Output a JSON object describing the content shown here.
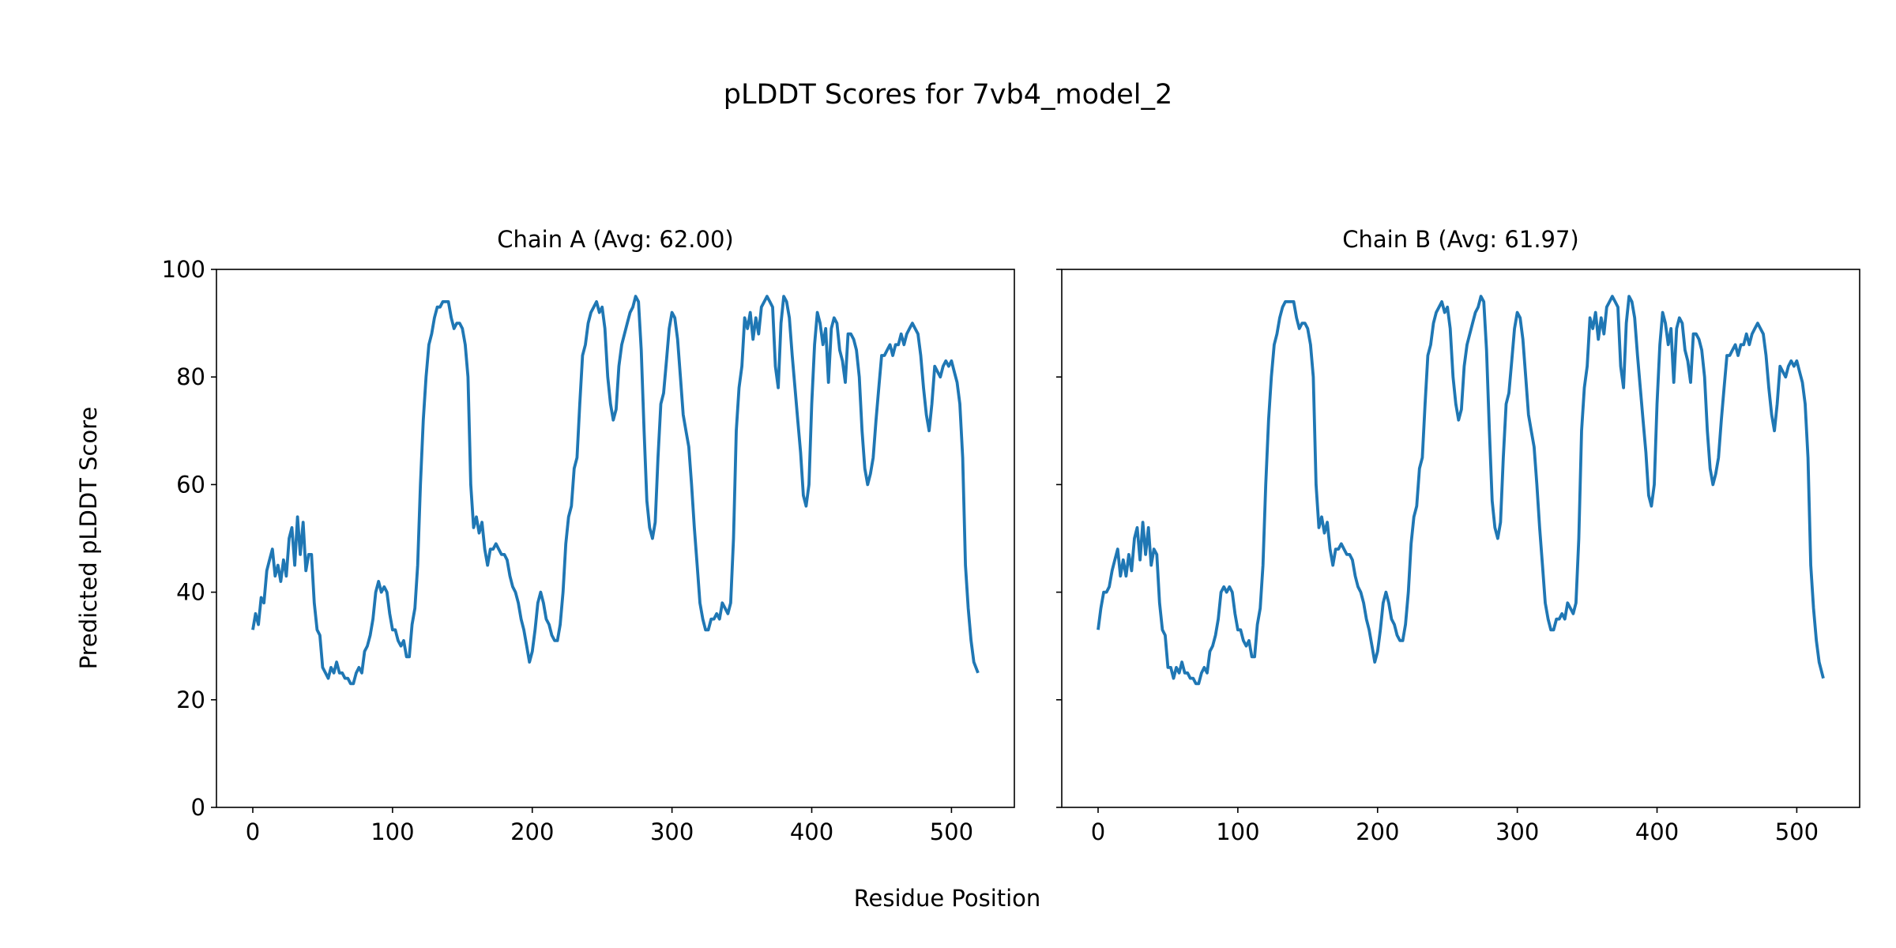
{
  "chart_data": {
    "type": "line",
    "title": "pLDDT Scores for 7vb4_model_2",
    "xlabel": "Residue Position",
    "ylabel": "Predicted pLDDT Score",
    "ylim": [
      0,
      100
    ],
    "xlim": [
      -26,
      545
    ],
    "xticks": [
      0,
      100,
      200,
      300,
      400,
      500
    ],
    "yticks": [
      0,
      20,
      40,
      60,
      80,
      100
    ],
    "grid": false,
    "line_color": "#1f77b4",
    "panels": [
      {
        "title": "Chain A (Avg: 62.00)",
        "x": [
          0,
          2,
          4,
          6,
          8,
          10,
          12,
          14,
          16,
          18,
          20,
          22,
          24,
          26,
          28,
          30,
          32,
          34,
          36,
          38,
          40,
          42,
          44,
          46,
          48,
          50,
          52,
          54,
          56,
          58,
          60,
          62,
          64,
          66,
          68,
          70,
          72,
          74,
          76,
          78,
          80,
          82,
          84,
          86,
          88,
          90,
          92,
          94,
          96,
          98,
          100,
          102,
          104,
          106,
          108,
          110,
          112,
          114,
          116,
          118,
          120,
          122,
          124,
          126,
          128,
          130,
          132,
          134,
          136,
          138,
          140,
          142,
          144,
          146,
          148,
          150,
          152,
          154,
          156,
          158,
          160,
          162,
          164,
          166,
          168,
          170,
          172,
          174,
          176,
          178,
          180,
          182,
          184,
          186,
          188,
          190,
          192,
          194,
          196,
          198,
          200,
          202,
          204,
          206,
          208,
          210,
          212,
          214,
          216,
          218,
          220,
          222,
          224,
          226,
          228,
          230,
          232,
          234,
          236,
          238,
          240,
          242,
          244,
          246,
          248,
          250,
          252,
          254,
          256,
          258,
          260,
          262,
          264,
          266,
          268,
          270,
          272,
          274,
          276,
          278,
          280,
          282,
          284,
          286,
          288,
          290,
          292,
          294,
          296,
          298,
          300,
          302,
          304,
          306,
          308,
          310,
          312,
          314,
          316,
          318,
          320,
          322,
          324,
          326,
          328,
          330,
          332,
          334,
          336,
          338,
          340,
          342,
          344,
          346,
          348,
          350,
          352,
          354,
          356,
          358,
          360,
          362,
          364,
          366,
          368,
          370,
          372,
          374,
          376,
          378,
          380,
          382,
          384,
          386,
          388,
          390,
          392,
          394,
          396,
          398,
          400,
          402,
          404,
          406,
          408,
          410,
          412,
          414,
          416,
          418,
          420,
          422,
          424,
          426,
          428,
          430,
          432,
          434,
          436,
          438,
          440,
          442,
          444,
          446,
          448,
          450,
          452,
          454,
          456,
          458,
          460,
          462,
          464,
          466,
          468,
          470,
          472,
          474,
          476,
          478,
          480,
          482,
          484,
          486,
          488,
          490,
          492,
          494,
          496,
          498,
          500,
          502,
          504,
          506,
          508,
          510,
          512,
          514,
          516,
          519
        ],
        "y": [
          33,
          36,
          34,
          39,
          38,
          44,
          46,
          48,
          43,
          45,
          42,
          46,
          43,
          50,
          52,
          45,
          54,
          47,
          53,
          44,
          47,
          47,
          38,
          33,
          32,
          26,
          25,
          24,
          26,
          25,
          27,
          25,
          25,
          24,
          24,
          23,
          23,
          25,
          26,
          25,
          29,
          30,
          32,
          35,
          40,
          42,
          40,
          41,
          40,
          36,
          33,
          33,
          31,
          30,
          31,
          28,
          28,
          34,
          37,
          45,
          60,
          72,
          80,
          86,
          88,
          91,
          93,
          93,
          94,
          94,
          94,
          91,
          89,
          90,
          90,
          89,
          86,
          80,
          60,
          52,
          54,
          51,
          53,
          48,
          45,
          48,
          48,
          49,
          48,
          47,
          47,
          46,
          43,
          41,
          40,
          38,
          35,
          33,
          30,
          27,
          29,
          33,
          38,
          40,
          38,
          35,
          34,
          32,
          31,
          31,
          34,
          40,
          49,
          54,
          56,
          63,
          65,
          75,
          84,
          86,
          90,
          92,
          93,
          94,
          92,
          93,
          89,
          80,
          75,
          72,
          74,
          82,
          86,
          88,
          90,
          92,
          93,
          95,
          94,
          85,
          70,
          57,
          52,
          50,
          53,
          65,
          75,
          77,
          83,
          89,
          92,
          91,
          87,
          80,
          73,
          70,
          67,
          60,
          52,
          45,
          38,
          35,
          33,
          33,
          35,
          35,
          36,
          35,
          38,
          37,
          36,
          38,
          50,
          70,
          78,
          82,
          91,
          89,
          92,
          87,
          91,
          88,
          93,
          94,
          95,
          94,
          93,
          82,
          78,
          90,
          95,
          94,
          91,
          84,
          78,
          72,
          66,
          58,
          56,
          60,
          75,
          86,
          92,
          90,
          86,
          89,
          79,
          89,
          91,
          90,
          85,
          83,
          79,
          88,
          88,
          87,
          85,
          80,
          70,
          63,
          60,
          62,
          65,
          72,
          78,
          84,
          84,
          85,
          86,
          84,
          86,
          86,
          88,
          86,
          88,
          89,
          90,
          89,
          88,
          84,
          78,
          73,
          70,
          75,
          82,
          81,
          80,
          82,
          83,
          82,
          83,
          81,
          79,
          75,
          65,
          45,
          37,
          31,
          27,
          25
        ]
      },
      {
        "title": "Chain B (Avg: 61.97)",
        "x": [
          0,
          2,
          4,
          6,
          8,
          10,
          12,
          14,
          16,
          18,
          20,
          22,
          24,
          26,
          28,
          30,
          32,
          34,
          36,
          38,
          40,
          42,
          44,
          46,
          48,
          50,
          52,
          54,
          56,
          58,
          60,
          62,
          64,
          66,
          68,
          70,
          72,
          74,
          76,
          78,
          80,
          82,
          84,
          86,
          88,
          90,
          92,
          94,
          96,
          98,
          100,
          102,
          104,
          106,
          108,
          110,
          112,
          114,
          116,
          118,
          120,
          122,
          124,
          126,
          128,
          130,
          132,
          134,
          136,
          138,
          140,
          142,
          144,
          146,
          148,
          150,
          152,
          154,
          156,
          158,
          160,
          162,
          164,
          166,
          168,
          170,
          172,
          174,
          176,
          178,
          180,
          182,
          184,
          186,
          188,
          190,
          192,
          194,
          196,
          198,
          200,
          202,
          204,
          206,
          208,
          210,
          212,
          214,
          216,
          218,
          220,
          222,
          224,
          226,
          228,
          230,
          232,
          234,
          236,
          238,
          240,
          242,
          244,
          246,
          248,
          250,
          252,
          254,
          256,
          258,
          260,
          262,
          264,
          266,
          268,
          270,
          272,
          274,
          276,
          278,
          280,
          282,
          284,
          286,
          288,
          290,
          292,
          294,
          296,
          298,
          300,
          302,
          304,
          306,
          308,
          310,
          312,
          314,
          316,
          318,
          320,
          322,
          324,
          326,
          328,
          330,
          332,
          334,
          336,
          338,
          340,
          342,
          344,
          346,
          348,
          350,
          352,
          354,
          356,
          358,
          360,
          362,
          364,
          366,
          368,
          370,
          372,
          374,
          376,
          378,
          380,
          382,
          384,
          386,
          388,
          390,
          392,
          394,
          396,
          398,
          400,
          402,
          404,
          406,
          408,
          410,
          412,
          414,
          416,
          418,
          420,
          422,
          424,
          426,
          428,
          430,
          432,
          434,
          436,
          438,
          440,
          442,
          444,
          446,
          448,
          450,
          452,
          454,
          456,
          458,
          460,
          462,
          464,
          466,
          468,
          470,
          472,
          474,
          476,
          478,
          480,
          482,
          484,
          486,
          488,
          490,
          492,
          494,
          496,
          498,
          500,
          502,
          504,
          506,
          508,
          510,
          512,
          514,
          516,
          519
        ],
        "y": [
          33,
          37,
          40,
          40,
          41,
          44,
          46,
          48,
          43,
          46,
          43,
          47,
          44,
          50,
          52,
          46,
          53,
          47,
          52,
          45,
          48,
          47,
          38,
          33,
          32,
          26,
          26,
          24,
          26,
          25,
          27,
          25,
          25,
          24,
          24,
          23,
          23,
          25,
          26,
          25,
          29,
          30,
          32,
          35,
          40,
          41,
          40,
          41,
          40,
          36,
          33,
          33,
          31,
          30,
          31,
          28,
          28,
          34,
          37,
          45,
          60,
          72,
          80,
          86,
          88,
          91,
          93,
          94,
          94,
          94,
          94,
          91,
          89,
          90,
          90,
          89,
          86,
          80,
          60,
          52,
          54,
          51,
          53,
          48,
          45,
          48,
          48,
          49,
          48,
          47,
          47,
          46,
          43,
          41,
          40,
          38,
          35,
          33,
          30,
          27,
          29,
          33,
          38,
          40,
          38,
          35,
          34,
          32,
          31,
          31,
          34,
          40,
          49,
          54,
          56,
          63,
          65,
          75,
          84,
          86,
          90,
          92,
          93,
          94,
          92,
          93,
          89,
          80,
          75,
          72,
          74,
          82,
          86,
          88,
          90,
          92,
          93,
          95,
          94,
          85,
          70,
          57,
          52,
          50,
          53,
          65,
          75,
          77,
          83,
          89,
          92,
          91,
          87,
          80,
          73,
          70,
          67,
          60,
          52,
          45,
          38,
          35,
          33,
          33,
          35,
          35,
          36,
          35,
          38,
          37,
          36,
          38,
          50,
          70,
          78,
          82,
          91,
          89,
          92,
          87,
          91,
          88,
          93,
          94,
          95,
          94,
          93,
          82,
          78,
          90,
          95,
          94,
          91,
          84,
          78,
          72,
          66,
          58,
          56,
          60,
          75,
          86,
          92,
          90,
          86,
          89,
          79,
          89,
          91,
          90,
          85,
          83,
          79,
          88,
          88,
          87,
          85,
          80,
          70,
          63,
          60,
          62,
          65,
          72,
          78,
          84,
          84,
          85,
          86,
          84,
          86,
          86,
          88,
          86,
          88,
          89,
          90,
          89,
          88,
          84,
          78,
          73,
          70,
          75,
          82,
          81,
          80,
          82,
          83,
          82,
          83,
          81,
          79,
          75,
          65,
          45,
          37,
          31,
          27,
          24
        ]
      }
    ]
  }
}
